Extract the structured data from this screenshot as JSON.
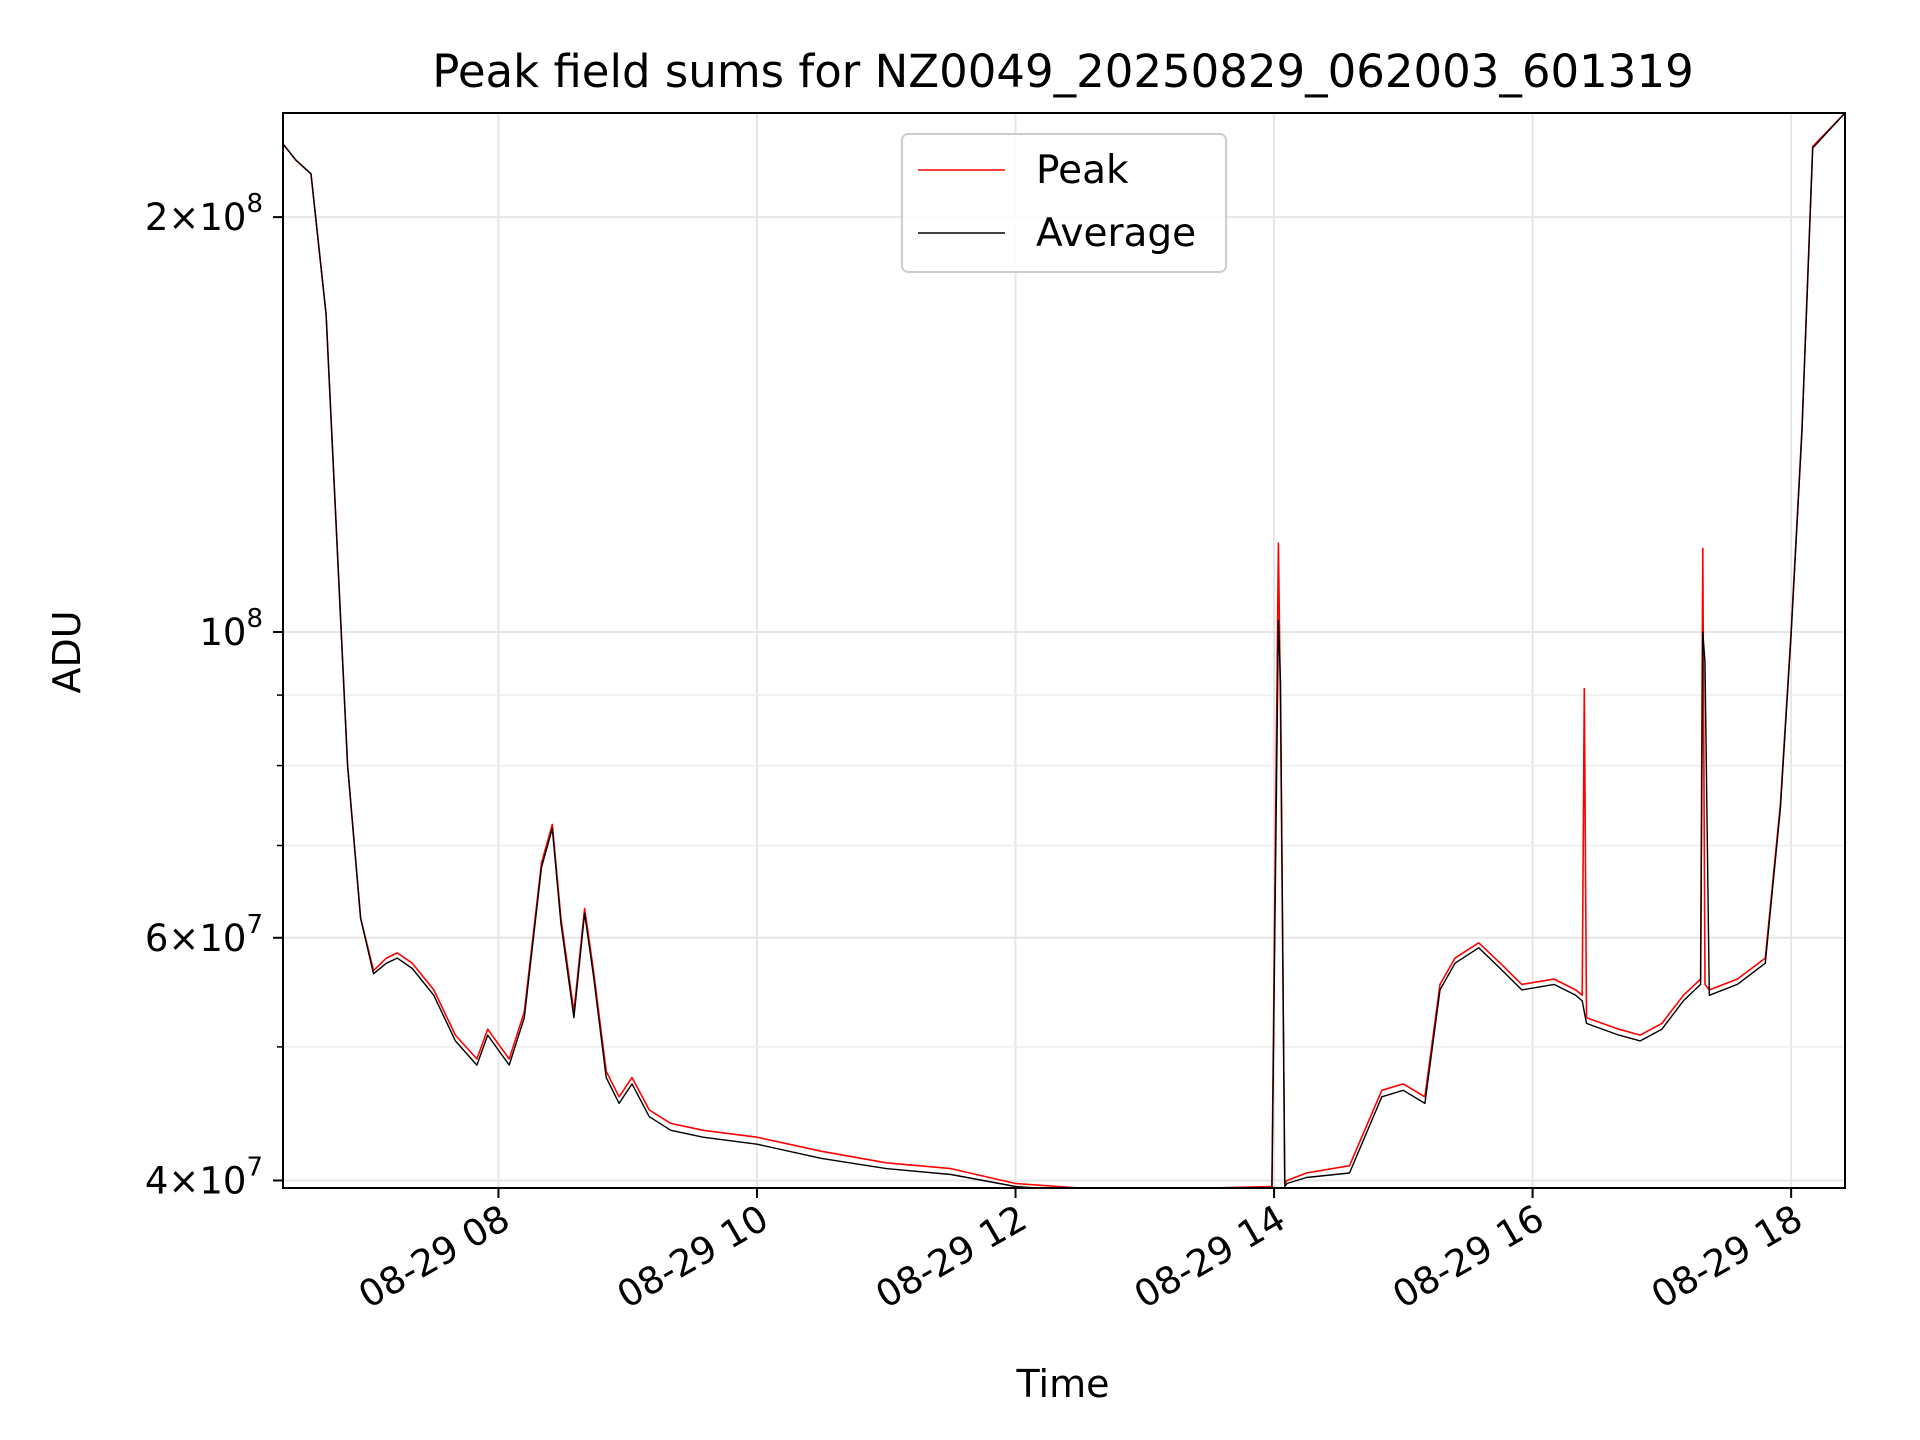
{
  "chart_data": {
    "type": "line",
    "title": "Peak field sums for NZ0049_20250829_062003_601319",
    "xlabel": "Time",
    "ylabel": "ADU",
    "yscale": "log",
    "xlim": [
      "2025-08-29 06:20",
      "2025-08-29 18:25"
    ],
    "ylim": [
      39500000,
      238000000
    ],
    "grid": true,
    "legend": {
      "position": "upper-center",
      "entries": [
        "Peak",
        "Average"
      ]
    },
    "xticks": [
      {
        "value": "2025-08-29 08:00",
        "label": "08-29 08"
      },
      {
        "value": "2025-08-29 10:00",
        "label": "08-29 10"
      },
      {
        "value": "2025-08-29 12:00",
        "label": "08-29 12"
      },
      {
        "value": "2025-08-29 14:00",
        "label": "08-29 14"
      },
      {
        "value": "2025-08-29 16:00",
        "label": "08-29 16"
      },
      {
        "value": "2025-08-29 18:00",
        "label": "08-29 18"
      }
    ],
    "yticks": [
      {
        "value": 40000000,
        "mant": "4",
        "exp": "7"
      },
      {
        "value": 60000000,
        "mant": "6",
        "exp": "7"
      },
      {
        "value": 100000000,
        "mant": "",
        "exp": "8"
      },
      {
        "value": 200000000,
        "mant": "2",
        "exp": "8"
      }
    ],
    "yminor": [
      50000000,
      70000000,
      80000000,
      90000000,
      300000000
    ],
    "series": [
      {
        "name": "Peak",
        "color": "#ff0000",
        "x": [
          "2025-08-29 06:20",
          "2025-08-29 06:26",
          "2025-08-29 06:33",
          "2025-08-29 06:40",
          "2025-08-29 06:50",
          "2025-08-29 06:56",
          "2025-08-29 07:02",
          "2025-08-29 07:08",
          "2025-08-29 07:13",
          "2025-08-29 07:20",
          "2025-08-29 07:30",
          "2025-08-29 07:40",
          "2025-08-29 07:50",
          "2025-08-29 07:55",
          "2025-08-29 08:05",
          "2025-08-29 08:12",
          "2025-08-29 08:20",
          "2025-08-29 08:25",
          "2025-08-29 08:29",
          "2025-08-29 08:35",
          "2025-08-29 08:40",
          "2025-08-29 08:44",
          "2025-08-29 08:50",
          "2025-08-29 08:56",
          "2025-08-29 09:02",
          "2025-08-29 09:10",
          "2025-08-29 09:20",
          "2025-08-29 09:35",
          "2025-08-29 10:00",
          "2025-08-29 10:30",
          "2025-08-29 11:00",
          "2025-08-29 11:30",
          "2025-08-29 12:00",
          "2025-08-29 12:30",
          "2025-08-29 13:00",
          "2025-08-29 13:30",
          "2025-08-29 13:59",
          "2025-08-29 14:02",
          "2025-08-29 14:03",
          "2025-08-29 14:05",
          "2025-08-29 14:06",
          "2025-08-29 14:15",
          "2025-08-29 14:35",
          "2025-08-29 14:50",
          "2025-08-29 15:00",
          "2025-08-29 15:10",
          "2025-08-29 15:17",
          "2025-08-29 15:24",
          "2025-08-29 15:35",
          "2025-08-29 15:45",
          "2025-08-29 15:55",
          "2025-08-29 16:10",
          "2025-08-29 16:20",
          "2025-08-29 16:23",
          "2025-08-29 16:24",
          "2025-08-29 16:25",
          "2025-08-29 16:40",
          "2025-08-29 16:50",
          "2025-08-29 17:00",
          "2025-08-29 17:10",
          "2025-08-29 17:18",
          "2025-08-29 17:19",
          "2025-08-29 17:20",
          "2025-08-29 17:22",
          "2025-08-29 17:35",
          "2025-08-29 17:48",
          "2025-08-29 17:55",
          "2025-08-29 18:00",
          "2025-08-29 18:05",
          "2025-08-29 18:10",
          "2025-08-29 18:25"
        ],
        "y": [
          226000000,
          220000000,
          215000000,
          170000000,
          80000000,
          62000000,
          56800000,
          58000000,
          58500000,
          57500000,
          55000000,
          51000000,
          49000000,
          51500000,
          49000000,
          53000000,
          68000000,
          72500000,
          62000000,
          53000000,
          63000000,
          57000000,
          48000000,
          46000000,
          47500000,
          45000000,
          44000000,
          43500000,
          43000000,
          42000000,
          41200000,
          40800000,
          39800000,
          39500000,
          39500000,
          39500000,
          39600000,
          116000000,
          88000000,
          39800000,
          40000000,
          40500000,
          41000000,
          46500000,
          47000000,
          46000000,
          55500000,
          58000000,
          59500000,
          57500000,
          55500000,
          56000000,
          55000000,
          54500000,
          91000000,
          52500000,
          51500000,
          51000000,
          52000000,
          54500000,
          56000000,
          115000000,
          55500000,
          55000000,
          56000000,
          58000000,
          75000000,
          100000000,
          140000000,
          225000000,
          238000000
        ]
      },
      {
        "name": "Average",
        "color": "#000000",
        "x": [
          "2025-08-29 06:20",
          "2025-08-29 06:26",
          "2025-08-29 06:33",
          "2025-08-29 06:40",
          "2025-08-29 06:50",
          "2025-08-29 06:56",
          "2025-08-29 07:02",
          "2025-08-29 07:08",
          "2025-08-29 07:13",
          "2025-08-29 07:20",
          "2025-08-29 07:30",
          "2025-08-29 07:40",
          "2025-08-29 07:50",
          "2025-08-29 07:55",
          "2025-08-29 08:05",
          "2025-08-29 08:12",
          "2025-08-29 08:20",
          "2025-08-29 08:25",
          "2025-08-29 08:29",
          "2025-08-29 08:35",
          "2025-08-29 08:40",
          "2025-08-29 08:44",
          "2025-08-29 08:50",
          "2025-08-29 08:56",
          "2025-08-29 09:02",
          "2025-08-29 09:10",
          "2025-08-29 09:20",
          "2025-08-29 09:35",
          "2025-08-29 10:00",
          "2025-08-29 10:30",
          "2025-08-29 11:00",
          "2025-08-29 11:30",
          "2025-08-29 12:00",
          "2025-08-29 12:30",
          "2025-08-29 13:00",
          "2025-08-29 13:30",
          "2025-08-29 13:59",
          "2025-08-29 14:02",
          "2025-08-29 14:03",
          "2025-08-29 14:05",
          "2025-08-29 14:06",
          "2025-08-29 14:15",
          "2025-08-29 14:35",
          "2025-08-29 14:50",
          "2025-08-29 15:00",
          "2025-08-29 15:10",
          "2025-08-29 15:17",
          "2025-08-29 15:24",
          "2025-08-29 15:35",
          "2025-08-29 15:45",
          "2025-08-29 15:55",
          "2025-08-29 16:10",
          "2025-08-29 16:20",
          "2025-08-29 16:23",
          "2025-08-29 16:24",
          "2025-08-29 16:25",
          "2025-08-29 16:40",
          "2025-08-29 16:50",
          "2025-08-29 17:00",
          "2025-08-29 17:10",
          "2025-08-29 17:18",
          "2025-08-29 17:19",
          "2025-08-29 17:20",
          "2025-08-29 17:22",
          "2025-08-29 17:35",
          "2025-08-29 17:48",
          "2025-08-29 17:55",
          "2025-08-29 18:00",
          "2025-08-29 18:05",
          "2025-08-29 18:10",
          "2025-08-29 18:25"
        ],
        "y": [
          226000000,
          220000000,
          215000000,
          170000000,
          80000000,
          62000000,
          56500000,
          57500000,
          58000000,
          57000000,
          54500000,
          50500000,
          48500000,
          51000000,
          48500000,
          52500000,
          67500000,
          72000000,
          61500000,
          52500000,
          62500000,
          56500000,
          47500000,
          45500000,
          47000000,
          44500000,
          43500000,
          43000000,
          42500000,
          41500000,
          40800000,
          40400000,
          39600000,
          39300000,
          39300000,
          39300000,
          39400000,
          102000000,
          92000000,
          39600000,
          39800000,
          40200000,
          40500000,
          46000000,
          46500000,
          45500000,
          55000000,
          57500000,
          59000000,
          57000000,
          55000000,
          55500000,
          54500000,
          54000000,
          53000000,
          52000000,
          51000000,
          50500000,
          51500000,
          54000000,
          55500000,
          100000000,
          95000000,
          54500000,
          55500000,
          57500000,
          74500000,
          99500000,
          139500000,
          224500000,
          238000000
        ]
      }
    ]
  }
}
